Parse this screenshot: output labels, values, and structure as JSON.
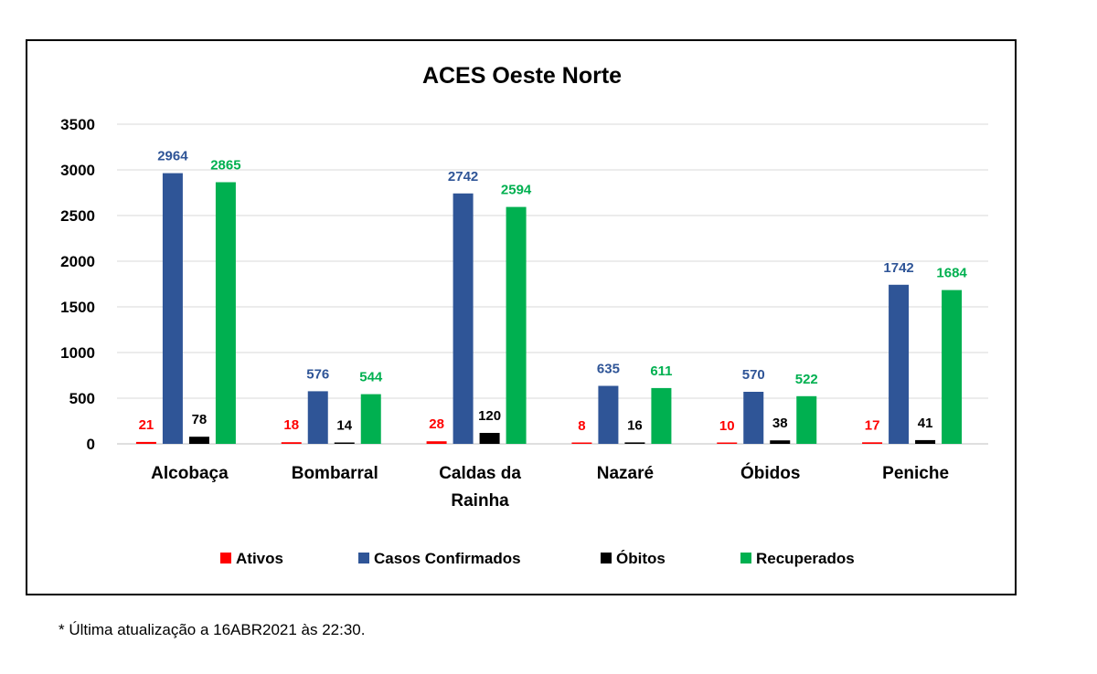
{
  "chart_data": {
    "type": "bar",
    "title": "ACES Oeste Norte",
    "xlabel": "",
    "ylabel": "",
    "categories": [
      [
        "Alcobaça"
      ],
      [
        "Bombarral"
      ],
      [
        "Caldas da",
        "Rainha"
      ],
      [
        "Nazaré"
      ],
      [
        "Óbidos"
      ],
      [
        "Peniche"
      ]
    ],
    "ylim": [
      0,
      3500
    ],
    "yticks": [
      0,
      500,
      1000,
      1500,
      2000,
      2500,
      3000,
      3500
    ],
    "grid": true,
    "legend_position": "bottom",
    "series": [
      {
        "name": "Ativos",
        "color": "#ff0000",
        "label_color": "#ff0000",
        "values": [
          21,
          18,
          28,
          8,
          10,
          17
        ]
      },
      {
        "name": "Casos Confirmados",
        "color": "#2f5597",
        "label_color": "#2f5597",
        "values": [
          2964,
          576,
          2742,
          635,
          570,
          1742
        ]
      },
      {
        "name": "Óbitos",
        "color": "#000000",
        "label_color": "#000000",
        "values": [
          78,
          14,
          120,
          16,
          38,
          41
        ]
      },
      {
        "name": "Recuperados",
        "color": "#00b050",
        "label_color": "#00b050",
        "values": [
          2865,
          544,
          2594,
          611,
          522,
          1684
        ]
      }
    ]
  },
  "footnote": "* Última atualização a 16ABR2021 às 22:30."
}
